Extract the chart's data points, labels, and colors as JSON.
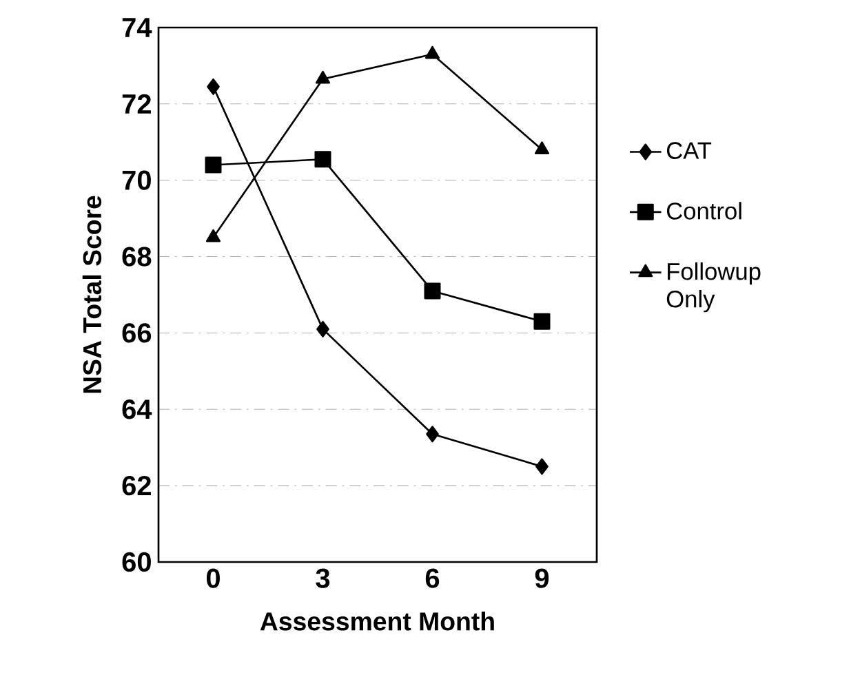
{
  "chart_data": {
    "type": "line",
    "xlabel": "Assessment Month",
    "ylabel": "NSA Total Score",
    "categories": [
      "0",
      "3",
      "6",
      "9"
    ],
    "series": [
      {
        "name": "CAT",
        "color": "#000000",
        "marker": "diamond",
        "values": [
          72.45,
          66.1,
          63.35,
          62.5
        ]
      },
      {
        "name": "Control",
        "color": "#000000",
        "marker": "square",
        "values": [
          70.4,
          70.55,
          67.1,
          66.3
        ]
      },
      {
        "name": "Followup Only",
        "color": "#000000",
        "marker": "triangle",
        "values": [
          68.5,
          72.65,
          73.3,
          70.8
        ]
      }
    ],
    "ylim": [
      60,
      74
    ],
    "yticks": [
      60,
      62,
      64,
      66,
      68,
      70,
      72,
      74
    ],
    "grid": "y",
    "legend": "right",
    "line_style": "solid"
  }
}
